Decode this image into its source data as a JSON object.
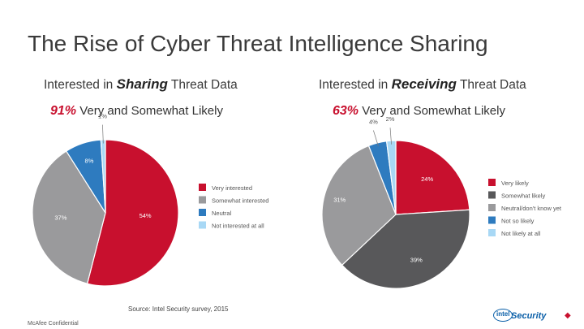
{
  "title": "The Rise of Cyber Threat Intelligence Sharing",
  "panels": [
    {
      "heading_pre": "Interested in ",
      "heading_em": "Sharing",
      "heading_post": " Threat Data",
      "sub_pct": "91%",
      "sub_text": " Very and Somewhat Likely"
    },
    {
      "heading_pre": "Interested in ",
      "heading_em": "Receiving",
      "heading_post": " Threat Data",
      "sub_pct": "63%",
      "sub_text": " Very and Somewhat Likely"
    }
  ],
  "chart_data": [
    {
      "type": "pie",
      "title": "Interested in Sharing Threat Data",
      "slices": [
        {
          "label": "Very interested",
          "value": 54,
          "display": "54%",
          "color": "#c8102e"
        },
        {
          "label": "Somewhat interested",
          "value": 37,
          "display": "37%",
          "color": "#9a9a9c"
        },
        {
          "label": "Neutral",
          "value": 8,
          "display": "8%",
          "color": "#2e7bbf"
        },
        {
          "label": "Not interested at all",
          "value": 1,
          "display": "1%",
          "color": "#a8d8f5"
        }
      ],
      "legend_position": "right"
    },
    {
      "type": "pie",
      "title": "Interested in Receiving Threat Data",
      "slices": [
        {
          "label": "Very likely",
          "value": 24,
          "display": "24%",
          "color": "#c8102e"
        },
        {
          "label": "Somewhat likely",
          "value": 39,
          "display": "39%",
          "color": "#58585a"
        },
        {
          "label": "Neutral/don't know yet",
          "value": 31,
          "display": "31%",
          "color": "#9a9a9c"
        },
        {
          "label": "Not so likely",
          "value": 4,
          "display": "4%",
          "color": "#2e7bbf"
        },
        {
          "label": "Not likely at all",
          "value": 2,
          "display": "2%",
          "color": "#a8d8f5"
        }
      ],
      "legend_position": "right"
    }
  ],
  "source": "Source: Intel Security survey, 2015",
  "confidential": "McAfee Confidential",
  "logo": {
    "intel": "intel",
    "wordmark": "Security"
  }
}
